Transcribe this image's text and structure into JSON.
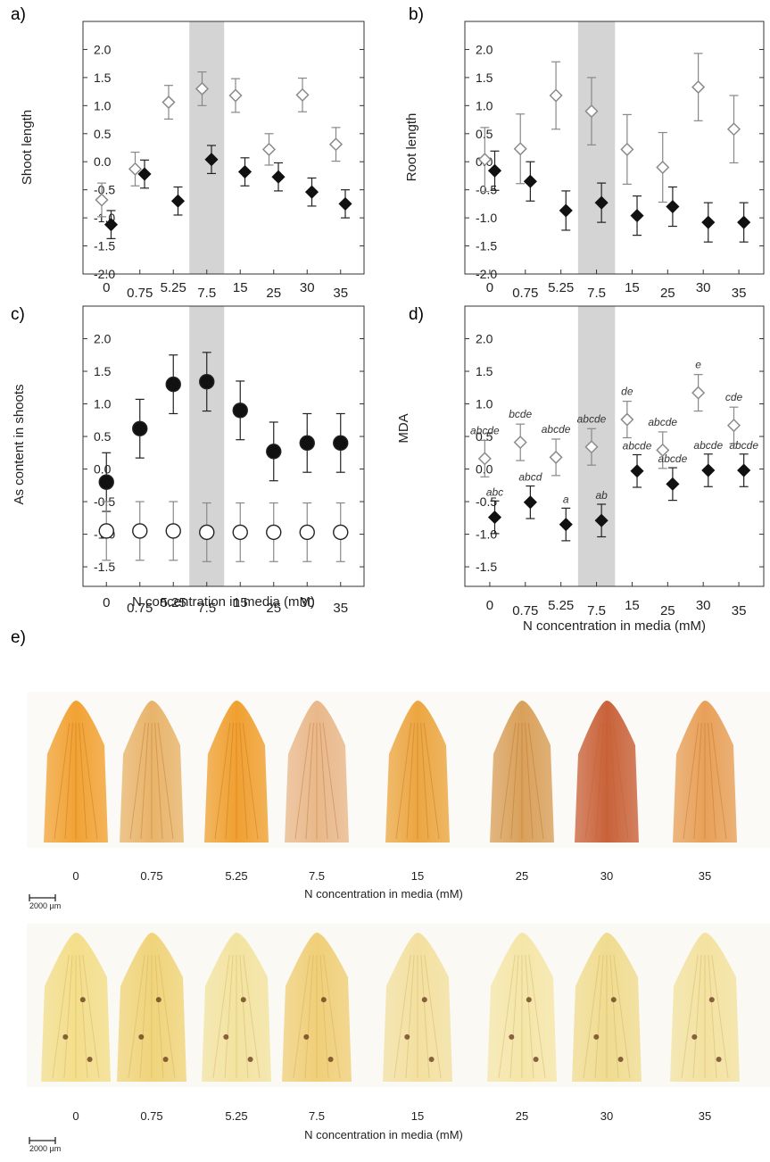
{
  "panels": [
    {
      "id": "a",
      "label": "a)"
    },
    {
      "id": "b",
      "label": "b)"
    },
    {
      "id": "c",
      "label": "c)"
    },
    {
      "id": "d",
      "label": "d)"
    },
    {
      "id": "e",
      "label": "e)"
    }
  ],
  "chart_data": [
    {
      "panel": "a",
      "type": "scatter",
      "title": "",
      "xlabel": "",
      "ylabel": "Shoot length",
      "categories": [
        "0",
        "0.75",
        "5.25",
        "7.5",
        "15",
        "25",
        "30",
        "35"
      ],
      "highlight_category": "7.5",
      "ylim": [
        -2.0,
        2.5
      ],
      "yticks": [
        "-2.0",
        "-1.5",
        "-1.0",
        "-0.5",
        "0.0",
        "0.5",
        "1.0",
        "1.5",
        "2.0"
      ],
      "grid": false,
      "series": [
        {
          "marker": "open-diamond",
          "values": [
            -0.68,
            -0.13,
            1.06,
            1.3,
            1.18,
            0.22,
            1.19,
            0.31
          ],
          "errors": [
            0.3,
            0.3,
            0.3,
            0.3,
            0.3,
            0.28,
            0.3,
            0.3
          ]
        },
        {
          "marker": "filled-diamond",
          "values": [
            -1.12,
            -0.22,
            -0.7,
            0.04,
            -0.18,
            -0.27,
            -0.54,
            -0.75
          ],
          "errors": [
            0.25,
            0.25,
            0.25,
            0.25,
            0.25,
            0.25,
            0.25,
            0.25
          ]
        }
      ]
    },
    {
      "panel": "b",
      "type": "scatter",
      "title": "",
      "xlabel": "",
      "ylabel": "Root length",
      "categories": [
        "0",
        "0.75",
        "5.25",
        "7.5",
        "15",
        "25",
        "30",
        "35"
      ],
      "highlight_category": "7.5",
      "ylim": [
        -2.0,
        2.5
      ],
      "yticks": [
        "-2.0",
        "-1.5",
        "-1.0",
        "-0.5",
        "0.0",
        "0.5",
        "1.0",
        "1.5",
        "2.0"
      ],
      "grid": false,
      "series": [
        {
          "marker": "open-diamond",
          "values": [
            0.04,
            0.23,
            1.18,
            0.9,
            0.22,
            -0.1,
            1.33,
            0.58
          ],
          "errors": [
            0.57,
            0.62,
            0.6,
            0.6,
            0.62,
            0.62,
            0.6,
            0.6
          ]
        },
        {
          "marker": "filled-diamond",
          "values": [
            -0.16,
            -0.35,
            -0.87,
            -0.73,
            -0.96,
            -0.8,
            -1.08,
            -1.08
          ],
          "errors": [
            0.35,
            0.35,
            0.35,
            0.35,
            0.35,
            0.35,
            0.35,
            0.35
          ]
        }
      ]
    },
    {
      "panel": "c",
      "type": "scatter",
      "title": "",
      "xlabel": "N concentration in  media (mM)",
      "ylabel": "As content in shoots",
      "categories": [
        "0",
        "0.75",
        "5.25",
        "7.5",
        "15",
        "25",
        "30",
        "35"
      ],
      "highlight_category": "7.5",
      "ylim": [
        -1.8,
        2.5
      ],
      "yticks": [
        "-1.5",
        "-1.0",
        "-0.5",
        "0.0",
        "0.5",
        "1.0",
        "1.5",
        "2.0"
      ],
      "grid": false,
      "series": [
        {
          "marker": "filled-circle",
          "values": [
            -0.2,
            0.62,
            1.3,
            1.34,
            0.9,
            0.27,
            0.4,
            0.4
          ],
          "errors": [
            0.45,
            0.45,
            0.45,
            0.45,
            0.45,
            0.45,
            0.45,
            0.45
          ]
        },
        {
          "marker": "open-circle",
          "values": [
            -0.95,
            -0.95,
            -0.95,
            -0.97,
            -0.97,
            -0.97,
            -0.97,
            -0.97
          ],
          "errors": [
            0.45,
            0.45,
            0.45,
            0.45,
            0.45,
            0.45,
            0.45,
            0.45
          ]
        }
      ]
    },
    {
      "panel": "d",
      "type": "scatter",
      "title": "",
      "xlabel": "N concentration in  media (mM)",
      "ylabel": "MDA",
      "categories": [
        "0",
        "0.75",
        "5.25",
        "7.5",
        "15",
        "25",
        "30",
        "35"
      ],
      "highlight_category": "7.5",
      "ylim": [
        -1.8,
        2.5
      ],
      "yticks": [
        "-1.5",
        "-1.0",
        "-0.5",
        "0.0",
        "0.5",
        "1.0",
        "1.5",
        "2.0"
      ],
      "grid": false,
      "series": [
        {
          "marker": "open-diamond",
          "values": [
            0.16,
            0.41,
            0.18,
            0.34,
            0.76,
            0.29,
            1.17,
            0.67
          ],
          "errors": [
            0.28,
            0.28,
            0.28,
            0.28,
            0.28,
            0.28,
            0.28,
            0.28
          ],
          "annotations": [
            "abcde",
            "bcde",
            "abcde",
            "abcde",
            "de",
            "abcde",
            "e",
            "cde"
          ]
        },
        {
          "marker": "filled-diamond",
          "values": [
            -0.74,
            -0.51,
            -0.85,
            -0.79,
            -0.03,
            -0.23,
            -0.02,
            -0.02
          ],
          "errors": [
            0.25,
            0.25,
            0.25,
            0.25,
            0.25,
            0.25,
            0.25,
            0.25
          ],
          "annotations": [
            "abc",
            "abcd",
            "a",
            "ab",
            "abcde",
            "abcde",
            "abcde",
            "abcde"
          ]
        }
      ]
    }
  ],
  "panel_e": {
    "rows": [
      {
        "labels": [
          "0",
          "0.75",
          "5.25",
          "7.5",
          "15",
          "25",
          "30",
          "35"
        ],
        "xlabel": "N concentration in media (mM)",
        "scale_text": "2000 µm",
        "palette": [
          "#f2a233",
          "#e8b46a",
          "#f0a030",
          "#e9b88a",
          "#eca640",
          "#d9a05a",
          "#c9623a",
          "#e8a058"
        ]
      },
      {
        "labels": [
          "0",
          "0.75",
          "5.25",
          "7.5",
          "15",
          "25",
          "30",
          "35"
        ],
        "xlabel": "N concentration in media (mM)",
        "scale_text": "2000 µm",
        "palette": [
          "#f3de8a",
          "#f0d47a",
          "#f3e3a0",
          "#f0cf78",
          "#f3e0a0",
          "#f5e6a8",
          "#f0dc90",
          "#f3e2a0"
        ]
      }
    ]
  },
  "colors": {
    "highlight": "#d4d4d4",
    "open_marker": "#8a8a8a",
    "filled_marker": "#111111",
    "error_bar": "#888888"
  }
}
